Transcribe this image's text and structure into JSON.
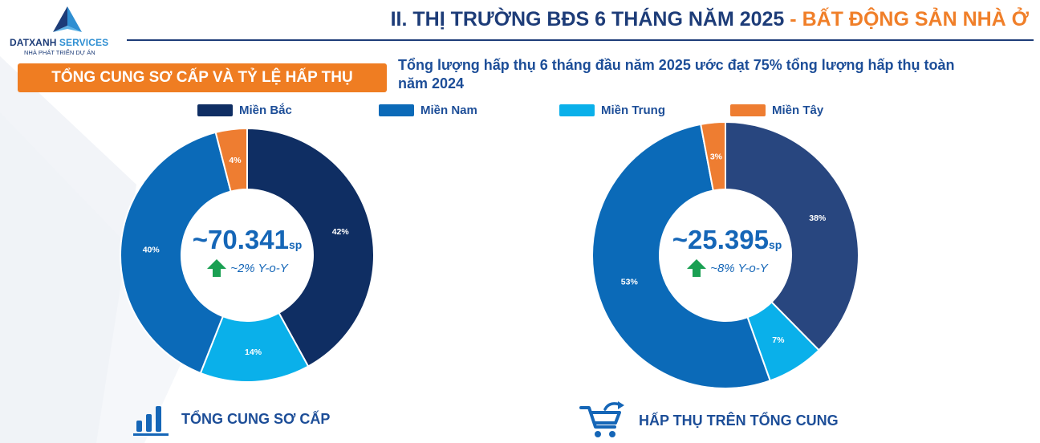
{
  "header": {
    "logo_name_part1": "DATXANH",
    "logo_name_part2": " SERVICES",
    "logo_tagline": "NHÀ PHÁT TRIỂN DỰ ÁN",
    "title_main": "II. THỊ TRƯỜNG BĐS 6 THÁNG NĂM 2025",
    "title_separator": " - ",
    "title_accent": "BẤT ĐỘNG SẢN NHÀ Ở"
  },
  "banner": {
    "label": "TỔNG CUNG SƠ CẤP VÀ TỶ LỆ HẤP THỤ"
  },
  "note": {
    "text": "Tổng lượng hấp thụ 6 tháng đầu năm 2025 ước đạt 75% tổng lượng hấp thụ toàn năm 2024"
  },
  "legend": [
    {
      "label": "Miền Bắc",
      "color": "#0f2e63"
    },
    {
      "label": "Miền Nam",
      "color": "#0b6ab8"
    },
    {
      "label": "Miền Trung",
      "color": "#0ab0ea"
    },
    {
      "label": "Miền Tây",
      "color": "#ee7d31"
    }
  ],
  "chart_data": [
    {
      "type": "pie",
      "donut": true,
      "categories": [
        "Miền Bắc",
        "Miền Trung",
        "Miền Nam",
        "Miền Tây"
      ],
      "values": [
        42,
        14,
        40,
        4
      ],
      "value_labels": [
        "42%",
        "14%",
        "40%",
        "4%"
      ],
      "colors": [
        "#0f2e63",
        "#0ab0ea",
        "#0b6ab8",
        "#ee7d31"
      ],
      "center_value": "~70.341",
      "center_unit": "sp",
      "center_growth": "~2% Y-o-Y",
      "growth_direction": "up",
      "footer_label": "TỔNG CUNG SƠ CẤP",
      "footer_icon": "bar-chart-icon"
    },
    {
      "type": "pie",
      "donut": true,
      "categories": [
        "Miền Bắc",
        "Miền Trung",
        "Miền Nam",
        "Miền Tây"
      ],
      "values": [
        38,
        7,
        53,
        3
      ],
      "value_labels": [
        "38%",
        "7%",
        "53%",
        "3%"
      ],
      "colors": [
        "#28467f",
        "#0ab0ea",
        "#0b6ab8",
        "#ee7d31"
      ],
      "center_value": "~25.395",
      "center_unit": "sp",
      "center_growth": "~8% Y-o-Y",
      "growth_direction": "up",
      "footer_label": "HẤP THỤ TRÊN TỔNG CUNG",
      "footer_icon": "shopping-cart-icon"
    }
  ],
  "icons": {
    "growth": "arrow-up-icon",
    "growth_color": "#1aa052",
    "logo": "triangle-logo-icon"
  }
}
